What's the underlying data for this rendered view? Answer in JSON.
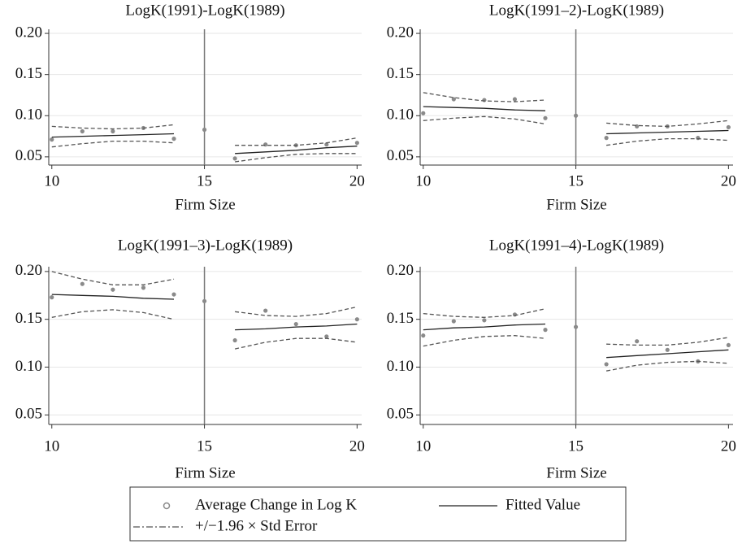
{
  "chart_data": [
    {
      "type": "rd",
      "title": "LogK(1991)-LogK(1989)",
      "xlabel": "Firm Size",
      "x": [
        10,
        11,
        12,
        13,
        14,
        15,
        16,
        17,
        18,
        19,
        20
      ],
      "cutoff": 15,
      "xlim": [
        9.9,
        20.15
      ],
      "ylim": [
        0.04,
        0.205
      ],
      "xticks": [
        10,
        15,
        20
      ],
      "yticks": [
        {
          "value": 0.05,
          "label": "0.05"
        },
        {
          "value": 0.1,
          "label": "0.10"
        },
        {
          "value": 0.15,
          "label": "0.15"
        },
        {
          "value": 0.2,
          "label": "0.20"
        }
      ],
      "grid": true,
      "series": [
        {
          "style": "points",
          "color": "#8a8a8a",
          "values": [
            0.071,
            0.081,
            0.081,
            0.085,
            0.072,
            0.083,
            0.048,
            0.065,
            0.064,
            0.065,
            0.067
          ]
        },
        {
          "style": "solid",
          "color": "#222222",
          "values": [
            0.074,
            0.075,
            0.076,
            0.077,
            0.078,
            null,
            0.054,
            0.056,
            0.058,
            0.061,
            0.063
          ]
        },
        {
          "style": "dashed",
          "color": "#555555",
          "values": [
            0.087,
            0.085,
            0.084,
            0.085,
            0.089,
            null,
            0.064,
            0.064,
            0.064,
            0.067,
            0.073
          ]
        },
        {
          "style": "dashed",
          "color": "#555555",
          "values": [
            0.062,
            0.066,
            0.069,
            0.069,
            0.067,
            null,
            0.044,
            0.049,
            0.053,
            0.054,
            0.054
          ]
        }
      ]
    },
    {
      "type": "rd",
      "title": "LogK(1991–2)-LogK(1989)",
      "xlabel": "Firm Size",
      "x": [
        10,
        11,
        12,
        13,
        14,
        15,
        16,
        17,
        18,
        19,
        20
      ],
      "cutoff": 15,
      "xlim": [
        9.9,
        20.15
      ],
      "ylim": [
        0.04,
        0.205
      ],
      "xticks": [
        10,
        15,
        20
      ],
      "yticks": [
        {
          "value": 0.05,
          "label": "0.05"
        },
        {
          "value": 0.1,
          "label": "0.10"
        },
        {
          "value": 0.15,
          "label": "0.15"
        },
        {
          "value": 0.2,
          "label": "0.20"
        }
      ],
      "grid": true,
      "series": [
        {
          "style": "points",
          "color": "#8a8a8a",
          "values": [
            0.103,
            0.12,
            0.119,
            0.12,
            0.097,
            0.1,
            0.073,
            0.087,
            0.087,
            0.073,
            0.086
          ]
        },
        {
          "style": "solid",
          "color": "#222222",
          "values": [
            0.111,
            0.11,
            0.109,
            0.107,
            0.106,
            null,
            0.078,
            0.079,
            0.08,
            0.081,
            0.082
          ]
        },
        {
          "style": "dashed",
          "color": "#555555",
          "values": [
            0.128,
            0.122,
            0.118,
            0.117,
            0.119,
            null,
            0.091,
            0.088,
            0.087,
            0.09,
            0.094
          ]
        },
        {
          "style": "dashed",
          "color": "#555555",
          "values": [
            0.094,
            0.097,
            0.099,
            0.096,
            0.09,
            null,
            0.064,
            0.069,
            0.072,
            0.072,
            0.07
          ]
        }
      ]
    },
    {
      "type": "rd",
      "title": "LogK(1991–3)-LogK(1989)",
      "xlabel": "Firm Size",
      "x": [
        10,
        11,
        12,
        13,
        14,
        15,
        16,
        17,
        18,
        19,
        20
      ],
      "cutoff": 15,
      "xlim": [
        9.9,
        20.15
      ],
      "ylim": [
        0.04,
        0.205
      ],
      "xticks": [
        10,
        15,
        20
      ],
      "yticks": [
        {
          "value": 0.05,
          "label": "0.05"
        },
        {
          "value": 0.1,
          "label": "0.10"
        },
        {
          "value": 0.15,
          "label": "0.15"
        },
        {
          "value": 0.2,
          "label": "0.20"
        }
      ],
      "grid": true,
      "series": [
        {
          "style": "points",
          "color": "#8a8a8a",
          "values": [
            0.173,
            0.187,
            0.181,
            0.183,
            0.176,
            0.169,
            0.128,
            0.159,
            0.145,
            0.132,
            0.15
          ]
        },
        {
          "style": "solid",
          "color": "#222222",
          "values": [
            0.176,
            0.175,
            0.174,
            0.172,
            0.171,
            null,
            0.139,
            0.14,
            0.142,
            0.143,
            0.145
          ]
        },
        {
          "style": "dashed",
          "color": "#555555",
          "values": [
            0.2,
            0.192,
            0.186,
            0.186,
            0.192,
            null,
            0.158,
            0.154,
            0.153,
            0.156,
            0.163
          ]
        },
        {
          "style": "dashed",
          "color": "#555555",
          "values": [
            0.152,
            0.158,
            0.16,
            0.157,
            0.15,
            null,
            0.119,
            0.126,
            0.13,
            0.13,
            0.126
          ]
        }
      ]
    },
    {
      "type": "rd",
      "title": "LogK(1991–4)-LogK(1989)",
      "xlabel": "Firm Size",
      "x": [
        10,
        11,
        12,
        13,
        14,
        15,
        16,
        17,
        18,
        19,
        20
      ],
      "cutoff": 15,
      "xlim": [
        9.9,
        20.15
      ],
      "ylim": [
        0.04,
        0.205
      ],
      "xticks": [
        10,
        15,
        20
      ],
      "yticks": [
        {
          "value": 0.05,
          "label": "0.05"
        },
        {
          "value": 0.1,
          "label": "0.10"
        },
        {
          "value": 0.15,
          "label": "0.15"
        },
        {
          "value": 0.2,
          "label": "0.20"
        }
      ],
      "grid": true,
      "series": [
        {
          "style": "points",
          "color": "#8a8a8a",
          "values": [
            0.133,
            0.148,
            0.149,
            0.155,
            0.139,
            0.142,
            0.103,
            0.127,
            0.118,
            0.106,
            0.123
          ]
        },
        {
          "style": "solid",
          "color": "#222222",
          "values": [
            0.139,
            0.141,
            0.142,
            0.144,
            0.145,
            null,
            0.11,
            0.112,
            0.114,
            0.116,
            0.118
          ]
        },
        {
          "style": "dashed",
          "color": "#555555",
          "values": [
            0.156,
            0.153,
            0.152,
            0.154,
            0.161,
            null,
            0.124,
            0.123,
            0.123,
            0.126,
            0.131
          ]
        },
        {
          "style": "dashed",
          "color": "#555555",
          "values": [
            0.122,
            0.128,
            0.132,
            0.133,
            0.13,
            null,
            0.096,
            0.102,
            0.105,
            0.106,
            0.104
          ]
        }
      ]
    }
  ],
  "legend": [
    "Average Change in Log K",
    "Fitted Value",
    "+/−1.96 × Std Error"
  ]
}
